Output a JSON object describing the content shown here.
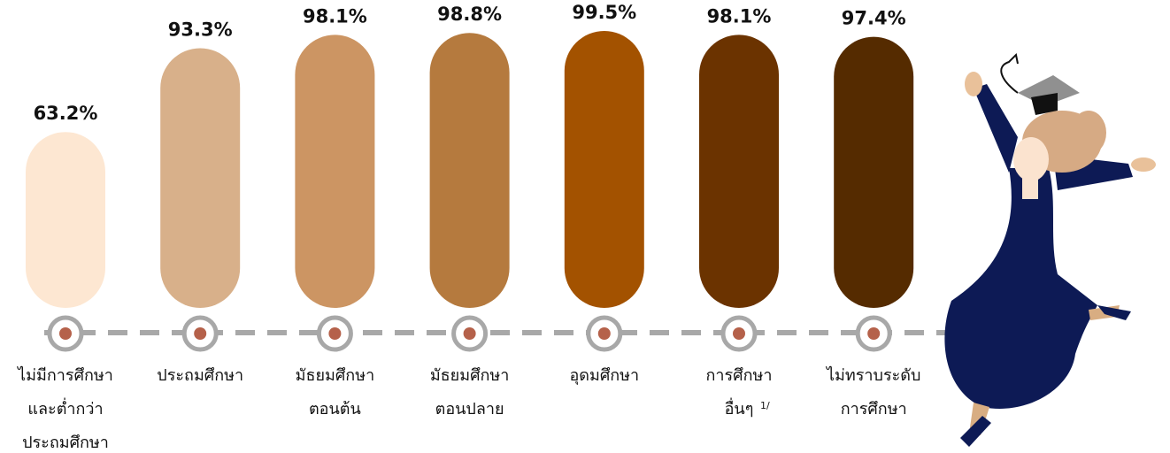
{
  "chart_data": {
    "type": "bar",
    "categories": [
      "ไม่มีการศึกษา\nและต่ำกว่า\nประถมศึกษา",
      "ประถมศึกษา",
      "มัธยมศึกษา\nตอนต้น",
      "มัธยมศึกษา\nตอนปลาย",
      "อุดมศึกษา",
      "การศึกษา\nอื่นๆ",
      "ไม่ทราบระดับ\nการศึกษา"
    ],
    "category_marks": [
      null,
      null,
      null,
      null,
      null,
      "1/",
      null
    ],
    "values": [
      63.2,
      93.3,
      98.1,
      98.8,
      99.5,
      98.1,
      97.4
    ],
    "value_labels": [
      "63.2%",
      "93.3%",
      "98.1%",
      "98.8%",
      "99.5%",
      "98.1%",
      "97.4%"
    ],
    "colors": [
      "#fde7d2",
      "#d8b08a",
      "#cc9563",
      "#b57a3e",
      "#a35200",
      "#6b3300",
      "#552b00"
    ]
  }
}
